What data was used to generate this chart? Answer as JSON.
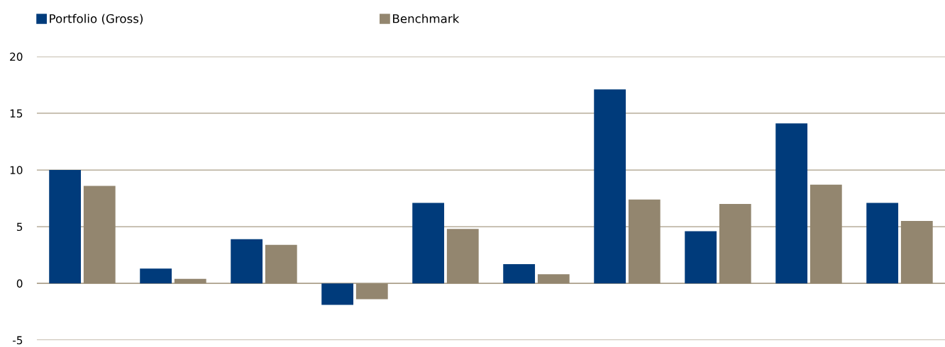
{
  "chart_data": {
    "type": "bar",
    "categories": [
      null,
      null,
      null,
      null,
      null,
      null,
      null,
      null,
      null,
      null
    ],
    "series": [
      {
        "name": "Portfolio (Gross)",
        "color": "#003b7b",
        "values": [
          10.0,
          1.3,
          3.9,
          -1.9,
          7.1,
          1.7,
          17.1,
          4.6,
          14.1,
          7.1
        ]
      },
      {
        "name": "Benchmark",
        "color": "#93866f",
        "values": [
          8.6,
          0.4,
          3.4,
          -1.4,
          4.8,
          0.8,
          7.4,
          7.0,
          8.7,
          5.5
        ]
      }
    ],
    "ylim": [
      -5,
      20
    ],
    "yticks": [
      -5,
      0,
      5,
      10,
      15,
      20
    ],
    "grid": "y",
    "legend": "top left"
  }
}
